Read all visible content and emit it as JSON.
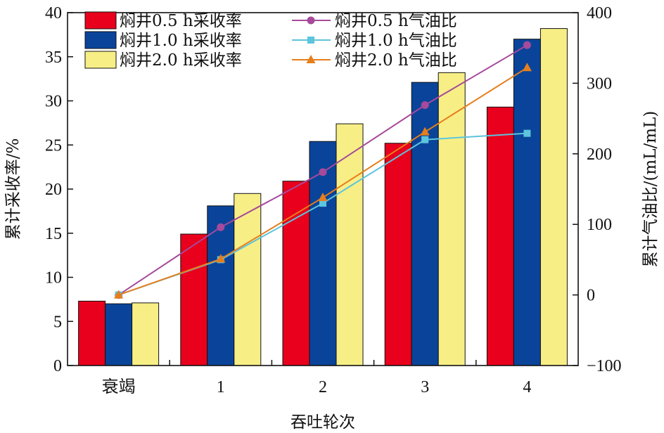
{
  "chart_data": {
    "type": "bar+line",
    "categories": [
      "衰竭",
      "1",
      "2",
      "3",
      "4"
    ],
    "xlabel": "吞吐轮次",
    "ylabel_left": "累计采收率/%",
    "ylabel_right": "累计气油比/(mL/mL)",
    "ylim_left": [
      0,
      40
    ],
    "yticks_left": [
      0,
      5,
      10,
      15,
      20,
      25,
      30,
      35,
      40
    ],
    "ylim_right": [
      -100,
      400
    ],
    "yticks_right": [
      -100,
      0,
      100,
      200,
      300,
      400
    ],
    "bar_series": [
      {
        "name": "焖井0.5 h采收率",
        "color": "#e8001c",
        "values": [
          7.3,
          14.9,
          20.9,
          25.2,
          29.3
        ]
      },
      {
        "name": "焖井1.0 h采收率",
        "color": "#0a449a",
        "values": [
          7.0,
          18.1,
          25.4,
          32.1,
          37.0
        ]
      },
      {
        "name": "焖井2.0 h采收率",
        "color": "#f7ef86",
        "values": [
          7.1,
          19.5,
          27.4,
          33.2,
          38.2
        ]
      }
    ],
    "line_series": [
      {
        "name": "焖井0.5 h气油比",
        "color": "#a64a9b",
        "marker": "circle",
        "values": [
          0,
          96,
          174,
          269,
          354
        ]
      },
      {
        "name": "焖井1.0 h气油比",
        "color": "#5dc4dc",
        "marker": "square",
        "values": [
          0,
          50,
          130,
          220,
          229
        ]
      },
      {
        "name": "焖井2.0 h气油比",
        "color": "#e67e1c",
        "marker": "triangle",
        "values": [
          0,
          51,
          138,
          231,
          322
        ]
      }
    ],
    "legend_position": "top-left"
  }
}
